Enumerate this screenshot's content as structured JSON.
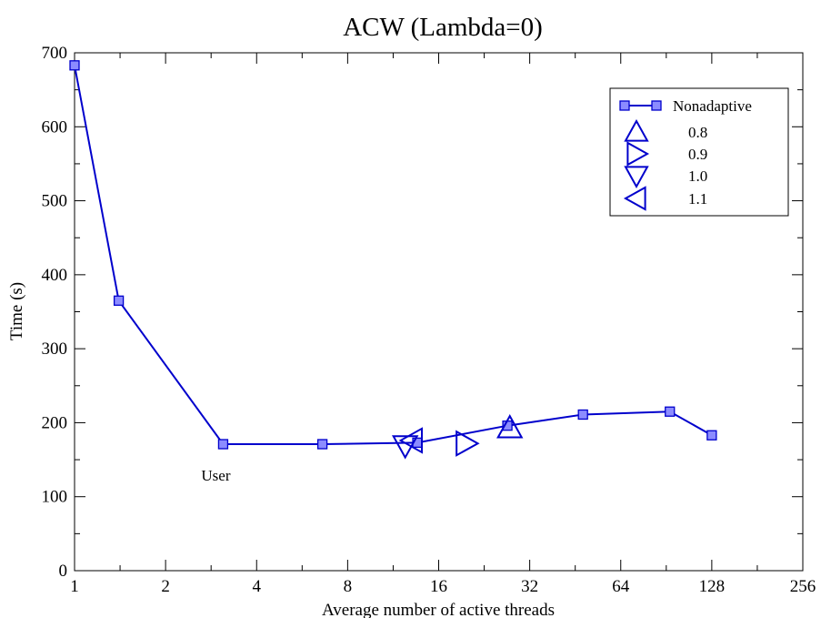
{
  "chart_data": {
    "type": "line",
    "title": "ACW (Lambda=0)",
    "xlabel": "Average number of active threads",
    "ylabel": "Time (s)",
    "xscale": "log2",
    "xlim": [
      1,
      256
    ],
    "ylim": [
      0,
      700
    ],
    "xticks": [
      1,
      2,
      4,
      8,
      16,
      32,
      64,
      128,
      256
    ],
    "xtick_labels": [
      "1",
      "2",
      "4",
      "8",
      "16",
      "32",
      "64",
      "128",
      "256"
    ],
    "yticks": [
      0,
      100,
      200,
      300,
      400,
      500,
      600,
      700
    ],
    "ytick_labels": [
      "0",
      "100",
      "200",
      "300",
      "400",
      "500",
      "600",
      "700"
    ],
    "grid": false,
    "legend_position": "top-right",
    "colors": {
      "series": "#0000cc",
      "marker_fill": "#8c8cff",
      "axis": "#000000"
    },
    "series": [
      {
        "name": "Nonadaptive",
        "marker": "square",
        "line": true,
        "x": [
          1,
          1.4,
          3.1,
          6.6,
          13.6,
          27,
          48,
          93,
          128
        ],
        "y": [
          683,
          365,
          171,
          171,
          173,
          196,
          211,
          215,
          183
        ]
      },
      {
        "name": "0.8",
        "marker": "triangle-up",
        "line": false,
        "x": [
          27.5
        ],
        "y": [
          193
        ]
      },
      {
        "name": "0.9",
        "marker": "triangle-right",
        "line": false,
        "x": [
          19.7
        ],
        "y": [
          172
        ]
      },
      {
        "name": "1.0",
        "marker": "triangle-down",
        "line": false,
        "x": [
          12.4
        ],
        "y": [
          169
        ]
      },
      {
        "name": "1.1",
        "marker": "triangle-left",
        "line": false,
        "x": [
          13.1
        ],
        "y": [
          176
        ]
      }
    ],
    "annotations": [
      {
        "text": "User",
        "x": 3.1,
        "y": 171
      }
    ]
  }
}
